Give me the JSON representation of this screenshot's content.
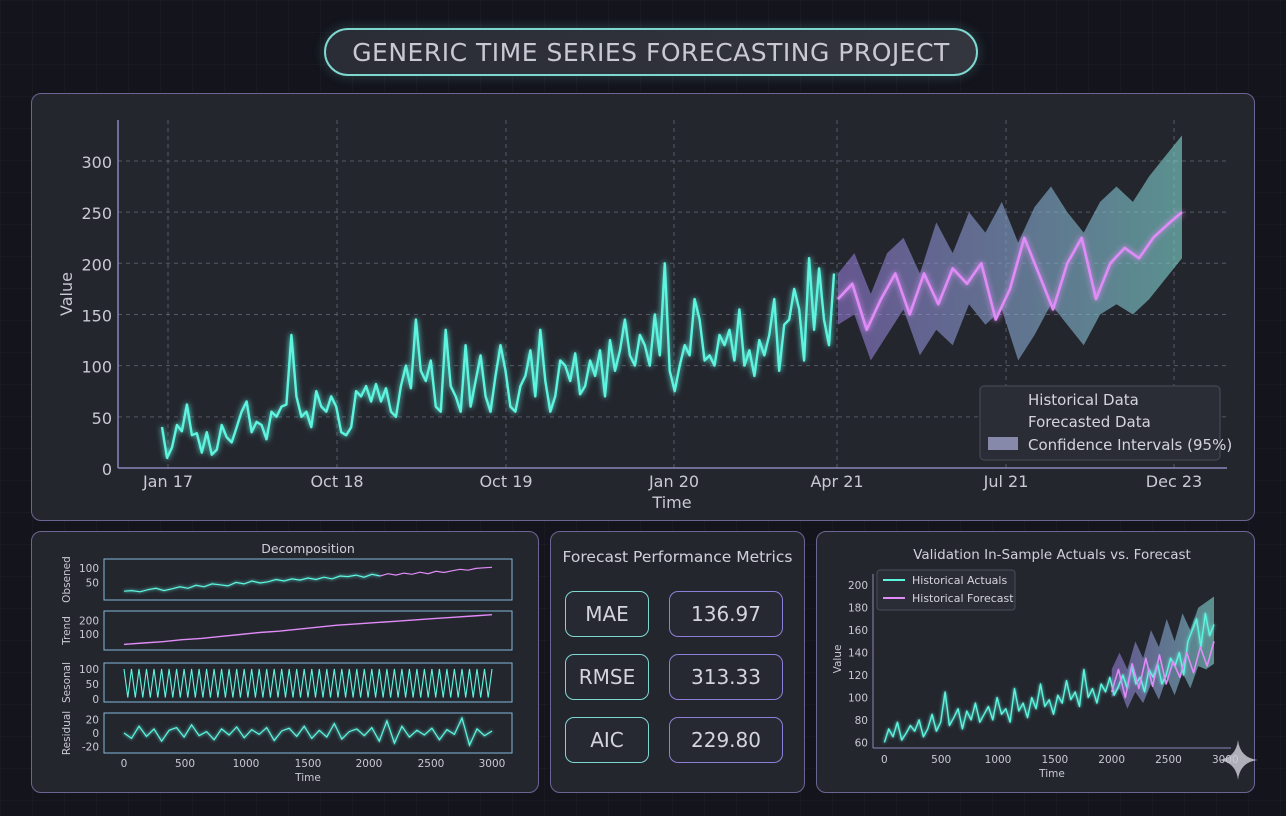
{
  "title": "GENERIC TIME SERIES FORECASTING PROJECT",
  "colors": {
    "historical": "#5df5e0",
    "forecast": "#e08cf8",
    "interval": "#9fa0c8"
  },
  "chart_data": [
    {
      "id": "main",
      "type": "line",
      "title": "",
      "xlabel": "Time",
      "ylabel": "Value",
      "ylim": [
        0,
        340
      ],
      "yticks": [
        0,
        50,
        100,
        150,
        200,
        250,
        300
      ],
      "xticks": [
        "Jan 17",
        "Oct 18",
        "Oct 19",
        "Jan 20",
        "Apr 21",
        "Jul 21",
        "Dec 23"
      ],
      "grid": true,
      "legend_position": "bottom-right",
      "legend": [
        "Historical Data",
        "Forecasted Data",
        "Confidence Intervals (95%)"
      ],
      "series": [
        {
          "name": "Historical Data",
          "values": [
            40,
            10,
            20,
            42,
            36,
            62,
            32,
            34,
            15,
            35,
            13,
            18,
            42,
            30,
            25,
            40,
            55,
            65,
            35,
            45,
            42,
            28,
            55,
            50,
            60,
            62,
            130,
            70,
            50,
            55,
            40,
            75,
            60,
            55,
            70,
            60,
            35,
            32,
            40,
            75,
            70,
            80,
            65,
            82,
            65,
            78,
            55,
            50,
            80,
            100,
            78,
            145,
            95,
            85,
            105,
            60,
            55,
            135,
            80,
            70,
            55,
            120,
            60,
            85,
            110,
            70,
            55,
            90,
            120,
            95,
            60,
            55,
            80,
            90,
            115,
            70,
            135,
            85,
            55,
            70,
            105,
            100,
            85,
            112,
            72,
            80,
            105,
            90,
            115,
            70,
            125,
            95,
            115,
            145,
            110,
            100,
            130,
            120,
            100,
            150,
            110,
            200,
            95,
            75,
            100,
            120,
            110,
            165,
            145,
            105,
            110,
            100,
            130,
            120,
            135,
            105,
            155,
            100,
            115,
            90,
            125,
            110,
            130,
            165,
            95,
            140,
            145,
            175,
            155,
            105,
            205,
            135,
            195,
            145,
            120,
            190
          ],
          "x_end": "Apr 21"
        },
        {
          "name": "Forecasted Data",
          "values": [
            165,
            180,
            135,
            165,
            190,
            150,
            190,
            160,
            195,
            180,
            200,
            145,
            175,
            225,
            190,
            155,
            200,
            225,
            165,
            200,
            215,
            205,
            225,
            238,
            250
          ]
        }
      ],
      "confidence_interval": {
        "name": "Confidence Intervals (95%)",
        "upper": [
          190,
          210,
          170,
          210,
          225,
          190,
          240,
          210,
          250,
          230,
          260,
          220,
          255,
          275,
          250,
          230,
          260,
          275,
          260,
          285,
          305,
          325
        ],
        "lower": [
          140,
          150,
          105,
          130,
          155,
          110,
          135,
          120,
          160,
          140,
          155,
          105,
          130,
          160,
          140,
          120,
          150,
          160,
          150,
          165,
          185,
          205
        ]
      }
    },
    {
      "id": "decomposition",
      "type": "line",
      "title": "Decomposition",
      "xlabel": "Time",
      "xticks": [
        0,
        500,
        1000,
        1500,
        2000,
        2500,
        3000
      ],
      "subplots": [
        {
          "ylabel": "Obsened",
          "yticks": [
            50,
            100
          ],
          "ylim": [
            0,
            120
          ],
          "forecast_start": 2050,
          "values": [
            20,
            22,
            18,
            25,
            30,
            22,
            28,
            35,
            30,
            40,
            35,
            45,
            42,
            38,
            50,
            45,
            55,
            48,
            52,
            60,
            55,
            62,
            58,
            65,
            60,
            68,
            62,
            72,
            70,
            75,
            68,
            78,
            72,
            80,
            75,
            82,
            78,
            85,
            80,
            88,
            84,
            90,
            95,
            92,
            98,
            100,
            102
          ]
        },
        {
          "ylabel": "Trend",
          "yticks": [
            100,
            200
          ],
          "ylim": [
            0,
            250
          ],
          "values": [
            20,
            30,
            40,
            55,
            65,
            80,
            95,
            110,
            120,
            135,
            150,
            165,
            175,
            185,
            195,
            205,
            215,
            225,
            235,
            245
          ]
        },
        {
          "ylabel": "Sesonal",
          "yticks": [
            0,
            50,
            100
          ],
          "ylim": [
            0,
            110
          ],
          "cycles": 49
        },
        {
          "ylabel": "Residual",
          "yticks": [
            20,
            0,
            -20
          ],
          "ylim": [
            -25,
            25
          ],
          "values": [
            0,
            -8,
            10,
            -5,
            6,
            -12,
            4,
            8,
            -6,
            12,
            -4,
            2,
            -10,
            6,
            -3,
            9,
            -7,
            5,
            -2,
            8,
            -11,
            3,
            7,
            -5,
            10,
            -8,
            4,
            -6,
            14,
            -9,
            2,
            6,
            -4,
            8,
            -12,
            18,
            -15,
            10,
            -6,
            4,
            -3,
            7,
            -10,
            5,
            -2,
            22,
            -18,
            6,
            -4,
            3
          ]
        }
      ]
    },
    {
      "id": "validation",
      "type": "line",
      "title": "Validation In-Sample Actuals vs. Forecast",
      "xlabel": "Time",
      "ylabel": "Value",
      "ylim": [
        55,
        210
      ],
      "xlim": [
        -100,
        3050
      ],
      "yticks": [
        60,
        80,
        100,
        120,
        140,
        160,
        180,
        200
      ],
      "xticks": [
        0,
        500,
        1000,
        1500,
        2000,
        2500,
        3000
      ],
      "legend_position": "top-left",
      "legend": [
        "Historical Actuals",
        "Historical Forecast"
      ],
      "series": [
        {
          "name": "Historical Actuals",
          "values": [
            60,
            72,
            65,
            78,
            62,
            68,
            75,
            70,
            80,
            65,
            72,
            85,
            70,
            78,
            105,
            75,
            82,
            90,
            72,
            88,
            80,
            95,
            78,
            85,
            92,
            80,
            100,
            85,
            90,
            78,
            108,
            88,
            95,
            82,
            100,
            90,
            112,
            92,
            98,
            85,
            102,
            95,
            115,
            98,
            105,
            92,
            125,
            100,
            108,
            95,
            112,
            105,
            118,
            102,
            110,
            120,
            108,
            128,
            112,
            118,
            105,
            125,
            118,
            130,
            112,
            120,
            135,
            128,
            140,
            120,
            150,
            160,
            170,
            145,
            175,
            155,
            165
          ]
        },
        {
          "name": "Historical Forecast",
          "values": [
            105,
            125,
            100,
            130,
            108,
            135,
            110,
            138,
            112,
            132,
            118,
            140,
            122,
            145,
            128,
            150
          ]
        }
      ],
      "confidence_interval": {
        "upper": [
          125,
          140,
          125,
          150,
          135,
          160,
          145,
          170,
          150,
          175,
          160,
          180,
          185,
          190
        ],
        "lower": [
          100,
          108,
          90,
          105,
          95,
          112,
          98,
          118,
          102,
          122,
          108,
          128,
          125,
          130
        ]
      }
    }
  ],
  "metrics": {
    "title": "Forecast Performance Metrics",
    "rows": [
      {
        "label": "MAE",
        "value": "136.97"
      },
      {
        "label": "RMSE",
        "value": "313.33"
      },
      {
        "label": "AIC",
        "value": "229.80"
      }
    ]
  }
}
